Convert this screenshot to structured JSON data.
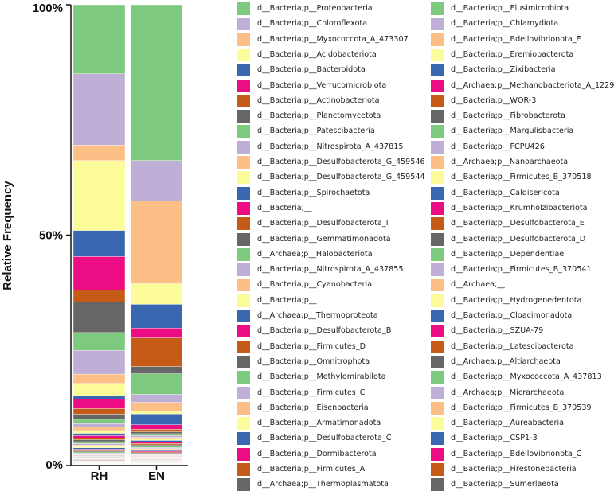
{
  "chart_data": {
    "type": "stacked-bar",
    "title": "",
    "xlabel": "",
    "ylabel": "Relative Frequency",
    "ylim": [
      0,
      100
    ],
    "yticks": [
      "0%",
      "50%",
      "100%"
    ],
    "ytick_values": [
      0,
      50,
      100
    ],
    "categories": [
      "RH",
      "EN"
    ],
    "series": [
      {
        "name": "d__Bacteria;p__Proteobacteria",
        "color": "#7dc97d",
        "values": [
          14.8,
          34.8
        ]
      },
      {
        "name": "d__Bacteria;p__Chloroflexota",
        "color": "#bfaed6",
        "values": [
          15.3,
          9.0
        ]
      },
      {
        "name": "d__Bacteria;p__Myxococcota_A_473307",
        "color": "#fcbf86",
        "values": [
          3.3,
          18.5
        ]
      },
      {
        "name": "d__Bacteria;p__Acidobacteriota",
        "color": "#fcfc9a",
        "values": [
          15.0,
          4.6
        ]
      },
      {
        "name": "d__Bacteria;p__Bacteroidota",
        "color": "#3a68b0",
        "values": [
          5.6,
          5.3
        ]
      },
      {
        "name": "d__Bacteria;p__Verrucomicrobiota",
        "color": "#ec0d84",
        "values": [
          7.2,
          2.2
        ]
      },
      {
        "name": "d__Bacteria;p__Actinobacteriota",
        "color": "#c55b17",
        "values": [
          2.5,
          6.4
        ]
      },
      {
        "name": "d__Bacteria;p__Planctomycetota",
        "color": "#666666",
        "values": [
          6.6,
          1.6
        ]
      },
      {
        "name": "d__Bacteria;p__Patescibacteria",
        "color": "#7dc97d",
        "values": [
          3.8,
          4.6
        ]
      },
      {
        "name": "d__Bacteria;p__Nitrospirota_A_437815",
        "color": "#bfaed6",
        "values": [
          5.1,
          1.8
        ]
      },
      {
        "name": "d__Bacteria;p__Desulfobacterota_G_459546",
        "color": "#fcbf86",
        "values": [
          2.0,
          2.0
        ]
      },
      {
        "name": "d__Bacteria;p__Desulfobacterota_G_459544",
        "color": "#fcfc9a",
        "values": [
          2.6,
          0.6
        ]
      },
      {
        "name": "d__Bacteria;p__Spirochaetota",
        "color": "#3a68b0",
        "values": [
          0.8,
          2.4
        ]
      },
      {
        "name": "d__Bacteria;__",
        "color": "#ec0d84",
        "values": [
          2.0,
          1.0
        ]
      },
      {
        "name": "d__Bacteria;p__Desulfobacterota_I",
        "color": "#c55b17",
        "values": [
          1.2,
          0.6
        ]
      },
      {
        "name": "d__Bacteria;p__Gemmatimonadota",
        "color": "#666666",
        "values": [
          1.1,
          0.4
        ]
      },
      {
        "name": "d__Archaea;p__Halobacteriota",
        "color": "#7dc97d",
        "values": [
          0.9,
          0.4
        ]
      },
      {
        "name": "d__Bacteria;p__Nitrospirota_A_437855",
        "color": "#bfaed6",
        "values": [
          0.8,
          0.4
        ]
      },
      {
        "name": "d__Bacteria;p__Cyanobacteria",
        "color": "#fcbf86",
        "values": [
          0.7,
          0.4
        ]
      },
      {
        "name": "d__Bacteria;p__",
        "color": "#fcfc9a",
        "values": [
          0.6,
          0.3
        ]
      },
      {
        "name": "d__Archaea;p__Thermoproteota",
        "color": "#3a68b0",
        "values": [
          0.5,
          0.4
        ]
      },
      {
        "name": "d__Bacteria;p__Desulfobacterota_B",
        "color": "#ec0d84",
        "values": [
          0.5,
          0.3
        ]
      },
      {
        "name": "d__Bacteria;p__Firmicutes_D",
        "color": "#c55b17",
        "values": [
          0.4,
          0.3
        ]
      },
      {
        "name": "d__Bacteria;p__Omnitrophota",
        "color": "#666666",
        "values": [
          0.4,
          0.3
        ]
      },
      {
        "name": "d__Bacteria;p__Methylomirabilota",
        "color": "#7dc97d",
        "values": [
          0.4,
          0.3
        ]
      },
      {
        "name": "d__Bacteria;p__Firmicutes_C",
        "color": "#bfaed6",
        "values": [
          0.3,
          0.2
        ]
      },
      {
        "name": "d__Bacteria;p__Eisenbacteria",
        "color": "#fcbf86",
        "values": [
          0.3,
          0.2
        ]
      },
      {
        "name": "d__Bacteria;p__Armatimonadota",
        "color": "#fcfc9a",
        "values": [
          0.3,
          0.2
        ]
      },
      {
        "name": "d__Bacteria;p__Desulfobacterota_C",
        "color": "#3a68b0",
        "values": [
          0.3,
          0.2
        ]
      },
      {
        "name": "d__Bacteria;p__Dormibacterota",
        "color": "#ec0d84",
        "values": [
          0.2,
          0.2
        ]
      },
      {
        "name": "d__Bacteria;p__Firmicutes_A",
        "color": "#c55b17",
        "values": [
          0.2,
          0.2
        ]
      },
      {
        "name": "d__Archaea;p__Thermoplasmatota",
        "color": "#666666",
        "values": [
          0.2,
          0.2
        ]
      },
      {
        "name": "d__Bacteria;p__Elusimicrobiota",
        "color": "#7dc97d",
        "values": [
          0.2,
          0.1
        ]
      },
      {
        "name": "d__Bacteria;p__Chlamydiota",
        "color": "#bfaed6",
        "values": [
          0.2,
          0.1
        ]
      },
      {
        "name": "d__Bacteria;p__Bdellovibrionota_E",
        "color": "#fcbf86",
        "values": [
          0.2,
          0.1
        ]
      },
      {
        "name": "d__Bacteria;p__Eremiobacterota",
        "color": "#fcfc9a",
        "values": [
          0.1,
          0.1
        ]
      },
      {
        "name": "d__Bacteria;p__Zixibacteria",
        "color": "#3a68b0",
        "values": [
          0.1,
          0.1
        ]
      },
      {
        "name": "d__Archaea;p__Methanobacteriota_A_1229",
        "color": "#ec0d84",
        "values": [
          0.1,
          0.1
        ]
      },
      {
        "name": "d__Bacteria;p__WOR-3",
        "color": "#c55b17",
        "values": [
          0.1,
          0.1
        ]
      },
      {
        "name": "d__Bacteria;p__Fibrobacterota",
        "color": "#666666",
        "values": [
          0.1,
          0.1
        ]
      },
      {
        "name": "d__Bacteria;p__Margulisbacteria",
        "color": "#7dc97d",
        "values": [
          0.1,
          0.1
        ]
      },
      {
        "name": "d__Bacteria;p__FCPU426",
        "color": "#bfaed6",
        "values": [
          0.1,
          0.1
        ]
      },
      {
        "name": "d__Archaea;p__Nanoarchaeota",
        "color": "#fcbf86",
        "values": [
          0.1,
          0.1
        ]
      },
      {
        "name": "d__Bacteria;p__Firmicutes_B_370518",
        "color": "#fcfc9a",
        "values": [
          0.1,
          0.1
        ]
      },
      {
        "name": "d__Bacteria;p__Caldisericota",
        "color": "#3a68b0",
        "values": [
          0.1,
          0.1
        ]
      },
      {
        "name": "d__Bacteria;p__Krumholzibacteriota",
        "color": "#ec0d84",
        "values": [
          0.1,
          0.1
        ]
      },
      {
        "name": "d__Bacteria;p__Desulfobacterota_E",
        "color": "#c55b17",
        "values": [
          0.1,
          0.1
        ]
      },
      {
        "name": "d__Bacteria;p__Desulfobacterota_D",
        "color": "#666666",
        "values": [
          0.1,
          0.1
        ]
      },
      {
        "name": "d__Bacteria;p__Dependentiae",
        "color": "#7dc97d",
        "values": [
          0.1,
          0.1
        ]
      },
      {
        "name": "d__Bacteria;p__Firmicutes_B_370541",
        "color": "#bfaed6",
        "values": [
          0.1,
          0.1
        ]
      },
      {
        "name": "d__Archaea;__",
        "color": "#fcbf86",
        "values": [
          0.1,
          0.1
        ]
      },
      {
        "name": "d__Bacteria;p__Hydrogenedentota",
        "color": "#fcfc9a",
        "values": [
          0.1,
          0.1
        ]
      },
      {
        "name": "d__Bacteria;p__Cloacimonadota",
        "color": "#3a68b0",
        "values": [
          0.05,
          0.05
        ]
      },
      {
        "name": "d__Bacteria;p__SZUA-79",
        "color": "#ec0d84",
        "values": [
          0.05,
          0.05
        ]
      },
      {
        "name": "d__Bacteria;p__Latescibacterota",
        "color": "#c55b17",
        "values": [
          0.05,
          0.05
        ]
      },
      {
        "name": "d__Archaea;p__Altiarchaeota",
        "color": "#666666",
        "values": [
          0.05,
          0.05
        ]
      },
      {
        "name": "d__Bacteria;p__Myxococcota_A_437813",
        "color": "#7dc97d",
        "values": [
          0.05,
          0.05
        ]
      },
      {
        "name": "d__Archaea;p__Micrarchaeota",
        "color": "#bfaed6",
        "values": [
          0.05,
          0.05
        ]
      },
      {
        "name": "d__Bacteria;p__Firmicutes_B_370539",
        "color": "#fcbf86",
        "values": [
          0.05,
          0.05
        ]
      },
      {
        "name": "d__Bacteria;p__Aureabacteria",
        "color": "#fcfc9a",
        "values": [
          0.05,
          0.05
        ]
      },
      {
        "name": "d__Bacteria;p__CSP1-3",
        "color": "#3a68b0",
        "values": [
          0.05,
          0.05
        ]
      },
      {
        "name": "d__Bacteria;p__Bdellovibrionota_C",
        "color": "#ec0d84",
        "values": [
          0.05,
          0.05
        ]
      },
      {
        "name": "d__Bacteria;p__Firestonebacteria",
        "color": "#c55b17",
        "values": [
          0.05,
          0.05
        ]
      },
      {
        "name": "d__Bacteria;p__Sumerlaeota",
        "color": "#666666",
        "values": [
          0.05,
          0.05
        ]
      }
    ]
  }
}
